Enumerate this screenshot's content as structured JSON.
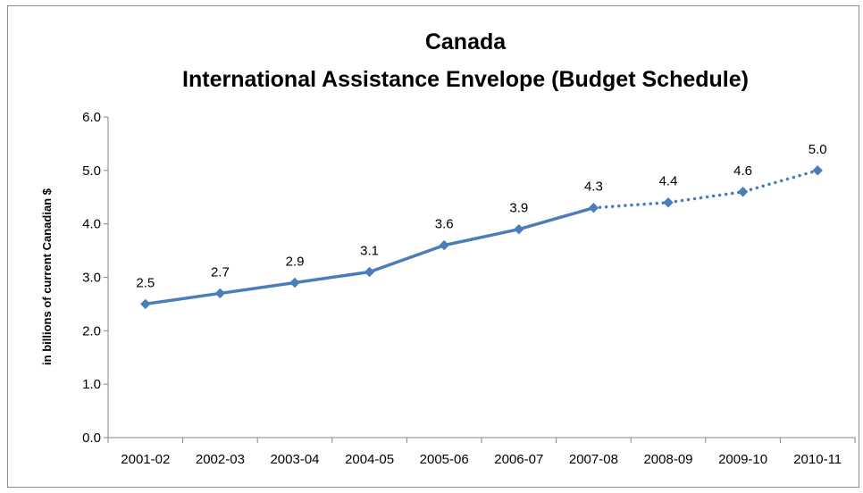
{
  "chart_data": {
    "type": "line",
    "title": [
      "Canada",
      "International Assistance Envelope (Budget Schedule)"
    ],
    "xlabel": "",
    "ylabel": "in billions of current Canadian $",
    "categories": [
      "2001-02",
      "2002-03",
      "2003-04",
      "2004-05",
      "2005-06",
      "2006-07",
      "2007-08",
      "2008-09",
      "2009-10",
      "2010-11"
    ],
    "values": [
      2.5,
      2.7,
      2.9,
      3.1,
      3.6,
      3.9,
      4.3,
      4.4,
      4.6,
      5.0
    ],
    "data_labels": [
      "2.5",
      "2.7",
      "2.9",
      "3.1",
      "3.6",
      "3.9",
      "4.3",
      "4.4",
      "4.6",
      "5.0"
    ],
    "solid_segment_end_index": 6,
    "dotted_segment_start_index": 6,
    "ylim": [
      0,
      6
    ],
    "yticks": [
      "0.0",
      "1.0",
      "2.0",
      "3.0",
      "4.0",
      "5.0",
      "6.0"
    ],
    "grid": false,
    "legend": "none",
    "series_color": "#4a7ebb",
    "frame_color": "#8c8c8c",
    "axis_color": "#868686"
  }
}
